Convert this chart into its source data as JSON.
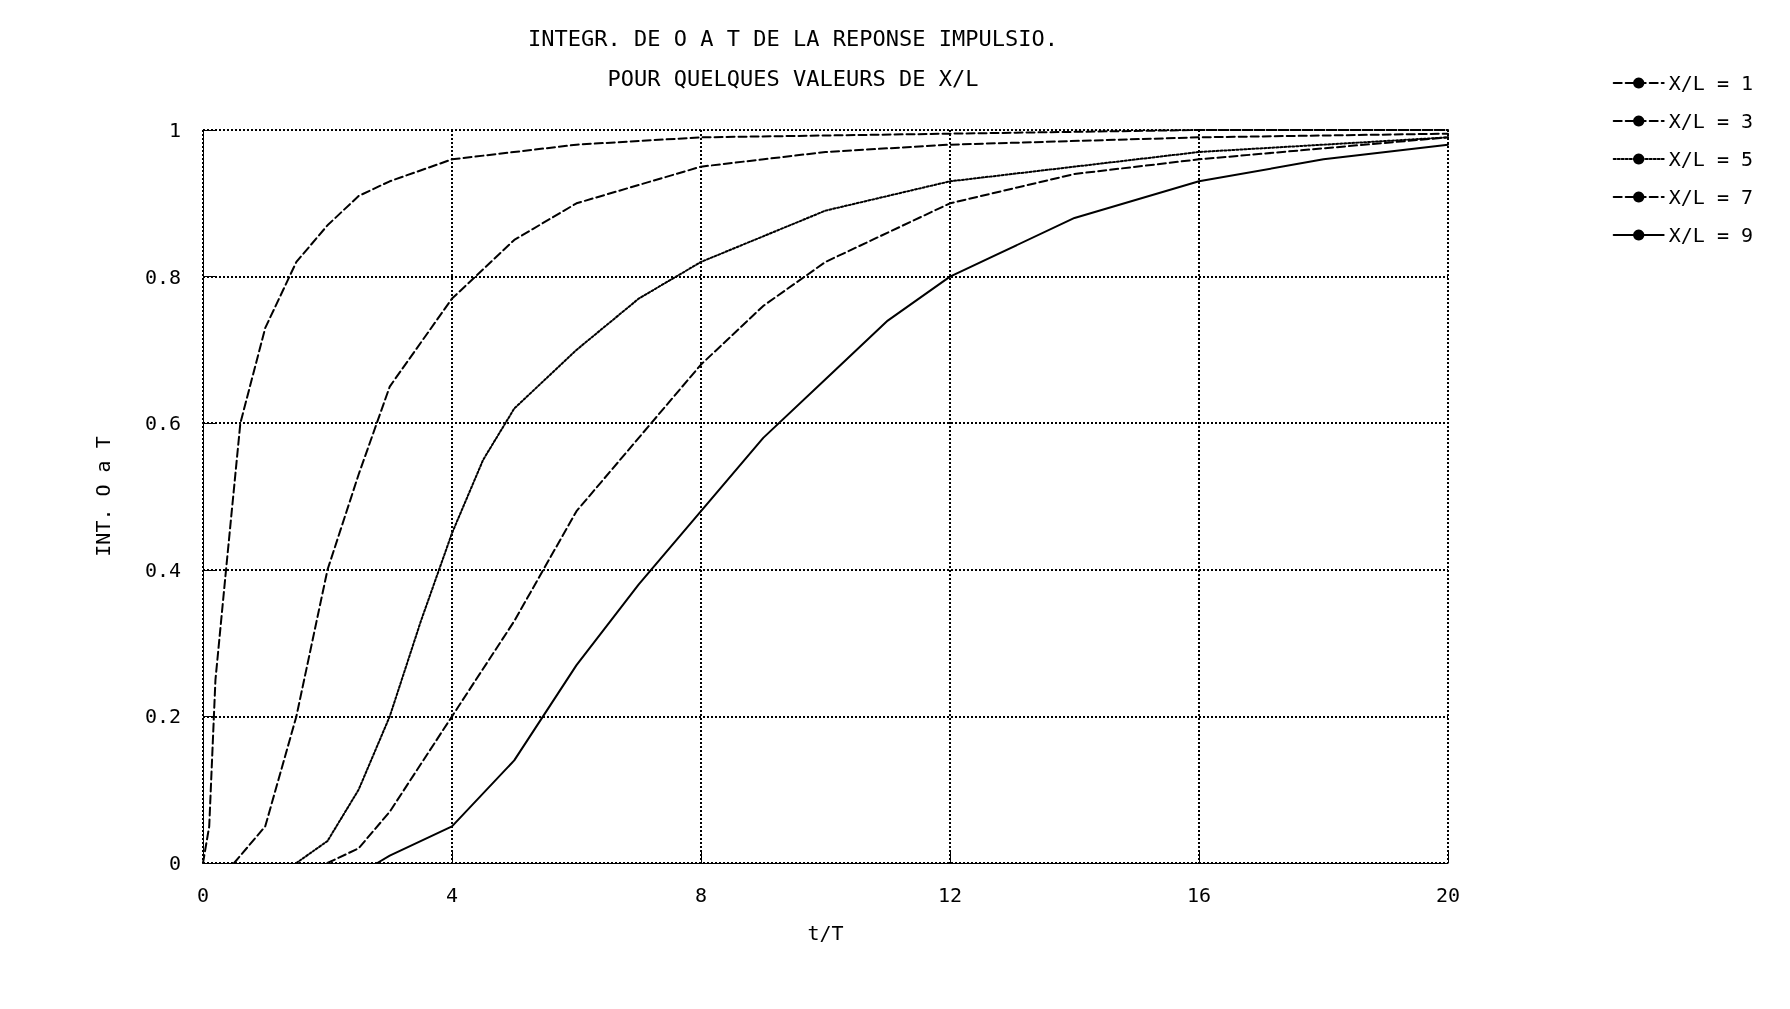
{
  "chart_data": {
    "type": "line",
    "title": "INTEGR. DE O A T DE LA REPONSE IMPULSIO.",
    "subtitle": "POUR QUELQUES VALEURS DE X/L",
    "xlabel": "t/T",
    "ylabel": "INT. O a T",
    "xlim": [
      0,
      20
    ],
    "ylim": [
      0,
      1
    ],
    "xticks": [
      0,
      4,
      8,
      12,
      16,
      20
    ],
    "yticks": [
      0,
      0.2,
      0.4,
      0.6,
      0.8,
      1
    ],
    "grid": true,
    "legend": "top right",
    "marker": "none",
    "series": [
      {
        "name": "X/L = 1",
        "color": "#000000",
        "line_style": "dashed",
        "x": [
          0,
          0.1,
          0.2,
          0.37,
          0.6,
          1,
          1.5,
          2,
          2.5,
          3,
          4,
          6,
          8,
          12,
          16,
          20
        ],
        "values": [
          0,
          0.05,
          0.25,
          0.4,
          0.6,
          0.73,
          0.82,
          0.87,
          0.91,
          0.93,
          0.96,
          0.98,
          0.99,
          0.995,
          1,
          1
        ]
      },
      {
        "name": "X/L = 3",
        "color": "#000000",
        "line_style": "dashed",
        "x": [
          0.5,
          1,
          1.5,
          2,
          2.5,
          3,
          4,
          5,
          6,
          8,
          10,
          12,
          16,
          20
        ],
        "values": [
          0,
          0.05,
          0.2,
          0.4,
          0.53,
          0.65,
          0.77,
          0.85,
          0.9,
          0.95,
          0.97,
          0.98,
          0.99,
          0.995
        ]
      },
      {
        "name": "X/L = 5",
        "color": "#000000",
        "line_style": "dotted",
        "x": [
          1.5,
          2,
          2.5,
          3,
          3.5,
          4,
          4.5,
          5,
          6,
          7,
          8,
          10,
          12,
          16,
          20
        ],
        "values": [
          0,
          0.03,
          0.1,
          0.2,
          0.33,
          0.45,
          0.55,
          0.62,
          0.7,
          0.77,
          0.82,
          0.89,
          0.93,
          0.97,
          0.99
        ]
      },
      {
        "name": "X/L = 7",
        "color": "#000000",
        "line_style": "dashed",
        "x": [
          2,
          2.5,
          3,
          4,
          5,
          6,
          7,
          8,
          9,
          10,
          12,
          14,
          16,
          20
        ],
        "values": [
          0,
          0.02,
          0.07,
          0.2,
          0.33,
          0.48,
          0.58,
          0.68,
          0.76,
          0.82,
          0.9,
          0.94,
          0.96,
          0.99
        ]
      },
      {
        "name": "X/L = 9",
        "color": "#000000",
        "line_style": "solid",
        "x": [
          2.8,
          3,
          4,
          5,
          6,
          7,
          8,
          9,
          10,
          11,
          12,
          14,
          16,
          18,
          20
        ],
        "values": [
          0,
          0.01,
          0.05,
          0.14,
          0.27,
          0.38,
          0.48,
          0.58,
          0.66,
          0.74,
          0.8,
          0.88,
          0.93,
          0.96,
          0.98
        ]
      }
    ]
  }
}
